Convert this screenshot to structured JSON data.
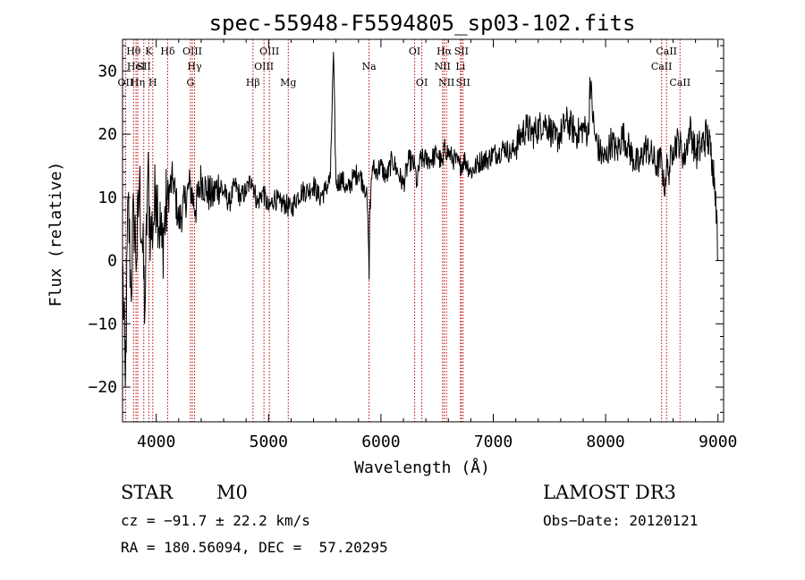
{
  "chart_data": {
    "type": "line",
    "title": "spec-55948-F5594805_sp03-102.fits",
    "xlabel": "Wavelength (Å)",
    "ylabel": "Flux (relative)",
    "xlim": [
      3700,
      9050
    ],
    "ylim": [
      -25.5,
      35
    ],
    "x_ticks": [
      4000,
      5000,
      6000,
      7000,
      8000,
      9000
    ],
    "y_ticks": [
      -20,
      -10,
      0,
      10,
      20,
      30
    ],
    "x_tick_labels": [
      "4000",
      "5000",
      "6000",
      "7000",
      "8000",
      "9000"
    ],
    "y_tick_labels": [
      "−20",
      "−10",
      "0",
      "10",
      "20",
      "30"
    ],
    "series": [
      {
        "name": "flux",
        "x": [
          3700,
          3725,
          3750,
          3775,
          3800,
          3825,
          3850,
          3875,
          3900,
          3925,
          3950,
          3975,
          4000,
          4050,
          4100,
          4150,
          4200,
          4250,
          4300,
          4350,
          4400,
          4450,
          4500,
          4550,
          4600,
          4650,
          4700,
          4750,
          4800,
          4850,
          4900,
          4950,
          5000,
          5050,
          5100,
          5150,
          5200,
          5250,
          5300,
          5350,
          5400,
          5450,
          5500,
          5550,
          5577,
          5600,
          5650,
          5700,
          5750,
          5800,
          5850,
          5870,
          5880,
          5890,
          5895,
          5900,
          5910,
          5925,
          5950,
          6000,
          6050,
          6100,
          6150,
          6200,
          6250,
          6300,
          6320,
          6350,
          6400,
          6450,
          6500,
          6550,
          6563,
          6600,
          6650,
          6700,
          6750,
          6800,
          6850,
          6900,
          6950,
          7000,
          7050,
          7100,
          7150,
          7200,
          7250,
          7300,
          7350,
          7400,
          7450,
          7500,
          7550,
          7600,
          7650,
          7700,
          7750,
          7800,
          7850,
          7860,
          7900,
          7950,
          8000,
          8050,
          8100,
          8150,
          8200,
          8250,
          8300,
          8350,
          8400,
          8450,
          8500,
          8520,
          8542,
          8560,
          8600,
          8650,
          8700,
          8750,
          8800,
          8850,
          8900,
          8950,
          8980,
          9000
        ],
        "y": [
          0,
          -20,
          10,
          -5,
          8,
          0,
          12,
          3,
          -8,
          14,
          4,
          6,
          12,
          2,
          10,
          13,
          6,
          9,
          12,
          8,
          13,
          11,
          10,
          12,
          11,
          9,
          12,
          10,
          11,
          13,
          9,
          11,
          8,
          10,
          9,
          9,
          8,
          10,
          11,
          11,
          12,
          10,
          11,
          13,
          33,
          12,
          13,
          11,
          13,
          14,
          12,
          11,
          8,
          2,
          -3,
          7,
          11,
          15,
          14,
          15,
          13,
          16,
          14,
          12,
          16,
          15,
          12,
          16,
          16,
          16,
          17,
          15,
          18,
          17,
          16,
          15,
          16,
          14,
          15,
          16,
          16,
          17,
          17,
          18,
          17,
          18,
          20,
          21,
          20,
          21,
          22,
          21,
          19,
          20,
          22,
          21,
          20,
          21,
          20,
          29,
          20,
          17,
          16,
          19,
          17,
          20,
          18,
          16,
          15,
          18,
          17,
          15,
          16,
          11,
          15,
          14,
          18,
          19,
          16,
          21,
          17,
          18,
          20,
          16,
          11,
          0
        ]
      }
    ],
    "line_markers": [
      {
        "name": "OII",
        "x": 3727,
        "row": 2
      },
      {
        "name": "Hθ",
        "x": 3798,
        "row": 0
      },
      {
        "name": "HeI",
        "x": 3820,
        "row": 1
      },
      {
        "name": "Hη",
        "x": 3835,
        "row": 2
      },
      {
        "name": "SII",
        "x": 3889,
        "row": 1
      },
      {
        "name": "K",
        "x": 3934,
        "row": 0
      },
      {
        "name": "H",
        "x": 3969,
        "row": 2
      },
      {
        "name": "Hδ",
        "x": 4102,
        "row": 0
      },
      {
        "name": "OIII",
        "x": 4321,
        "row": 0
      },
      {
        "name": "G",
        "x": 4304,
        "row": 2
      },
      {
        "name": "Hγ",
        "x": 4341,
        "row": 1
      },
      {
        "name": "Hβ",
        "x": 4861,
        "row": 2
      },
      {
        "name": "OIII",
        "x": 4959,
        "row": 1
      },
      {
        "name": "OIII",
        "x": 5007,
        "row": 0
      },
      {
        "name": "Mg",
        "x": 5175,
        "row": 2
      },
      {
        "name": "Na",
        "x": 5894,
        "row": 1
      },
      {
        "name": "OI",
        "x": 6300,
        "row": 0
      },
      {
        "name": "OI",
        "x": 6364,
        "row": 2
      },
      {
        "name": "NII",
        "x": 6548,
        "row": 1
      },
      {
        "name": "Hα",
        "x": 6563,
        "row": 0
      },
      {
        "name": "NII",
        "x": 6583,
        "row": 2
      },
      {
        "name": "Li",
        "x": 6708,
        "row": 1
      },
      {
        "name": "SII",
        "x": 6716,
        "row": 0
      },
      {
        "name": "SII",
        "x": 6731,
        "row": 2
      },
      {
        "name": "CaII",
        "x": 8498,
        "row": 1
      },
      {
        "name": "CaII",
        "x": 8542,
        "row": 0
      },
      {
        "name": "CaII",
        "x": 8662,
        "row": 2
      }
    ]
  },
  "info": {
    "class": "STAR",
    "subclass": "M0",
    "survey": "LAMOST DR3",
    "cz": "cz = −91.7 ± 22.2 km/s",
    "obs_date": "Obs−Date: 20120121",
    "radec": "RA = 180.56094, DEC =  57.20295"
  },
  "colors": {
    "line_marker": "#c00000",
    "spectrum": "#000000"
  }
}
